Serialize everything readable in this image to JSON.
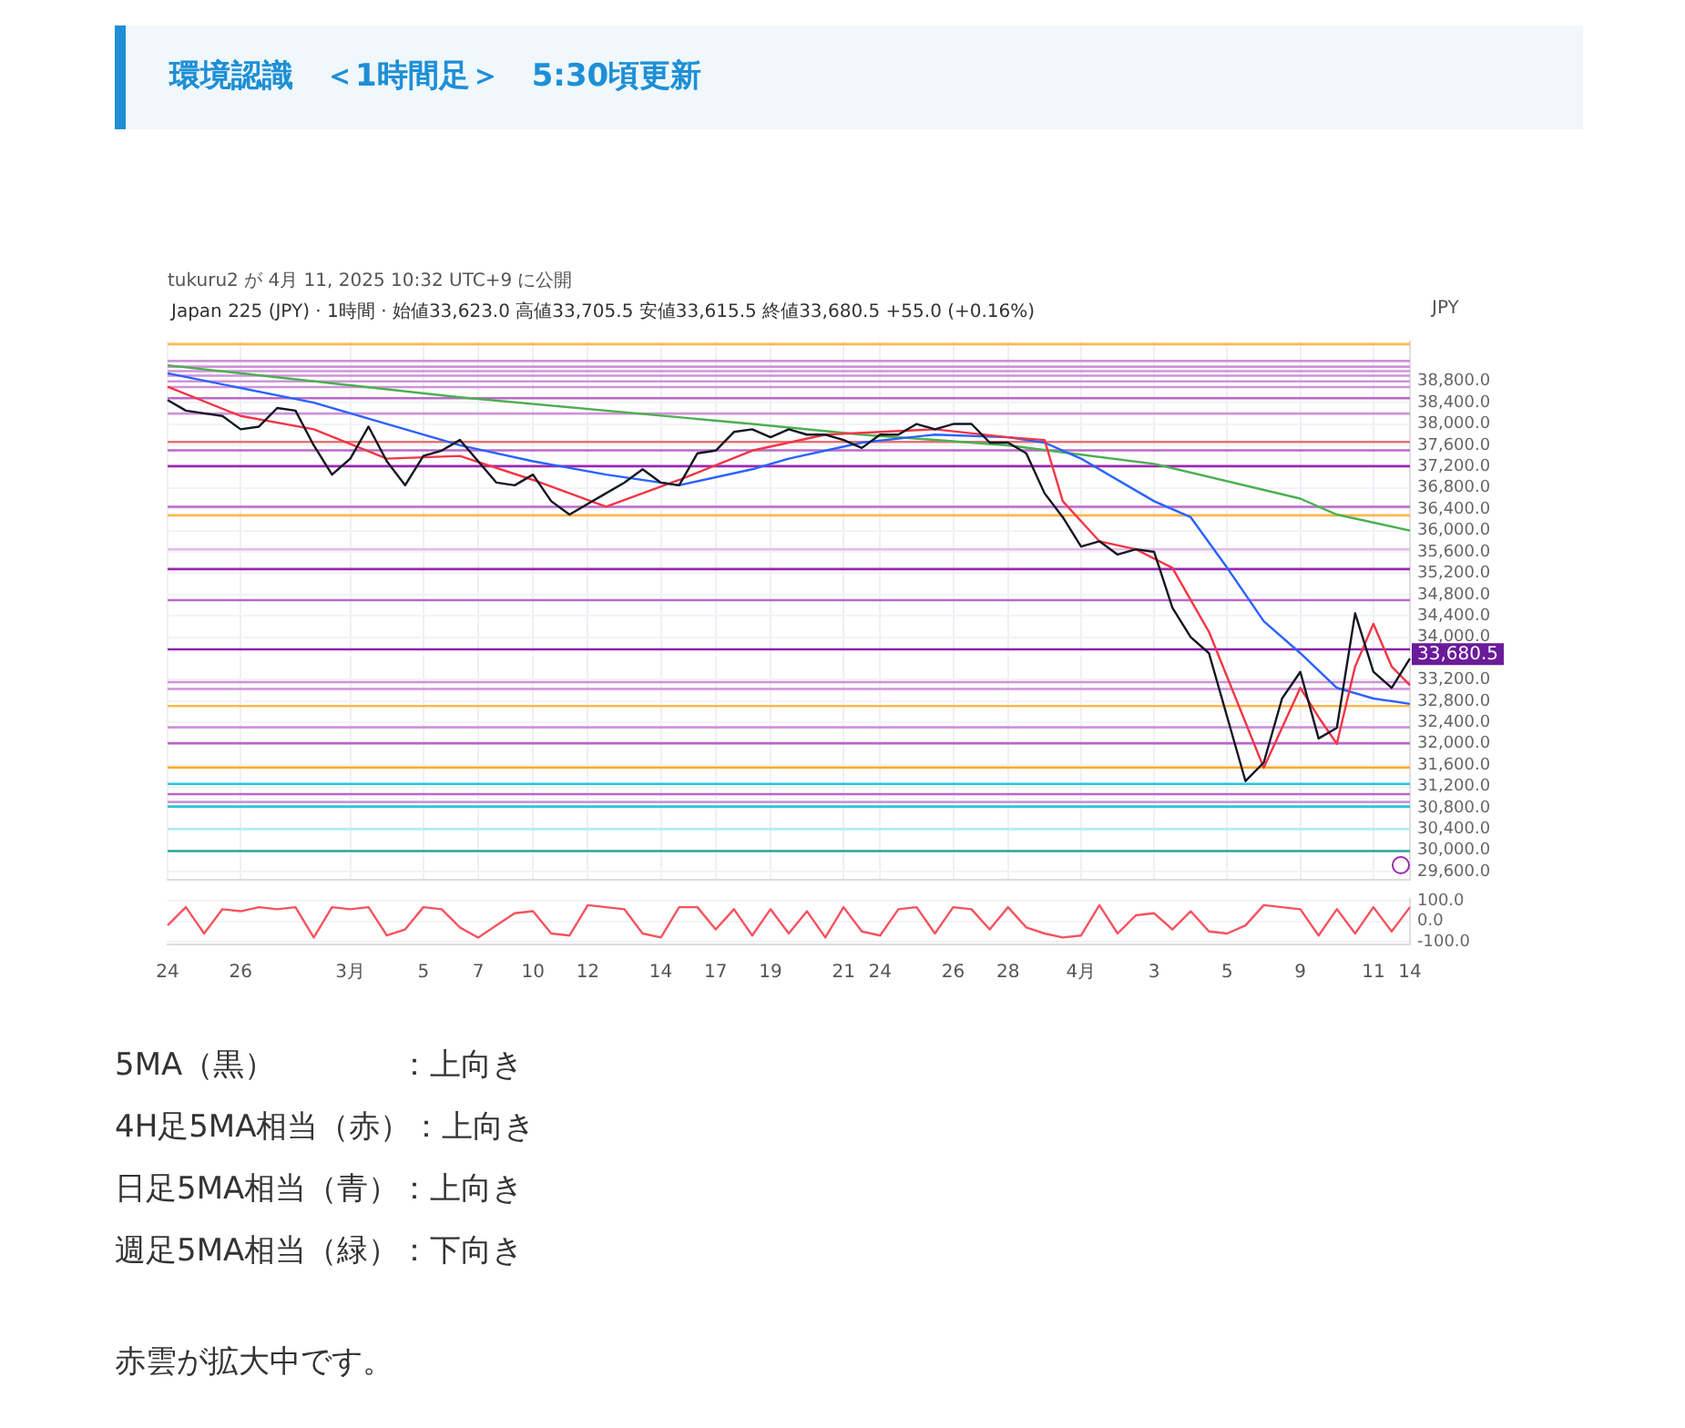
{
  "chart_data": [
    {
      "type": "line",
      "title": "環境認識　＜1時間足＞　5:30頃更新",
      "subtitle": "Japan 225 (JPY) · 1時間 · 始値33,623.0 高値33,705.5 安値33,615.5 終値33,680.5 +55.0 (+0.16%)",
      "ylabel": "JPY",
      "categories": [
        "24",
        null,
        null,
        null,
        "26",
        null,
        null,
        null,
        null,
        null,
        "3月",
        null,
        null,
        null,
        "5",
        null,
        null,
        "7",
        null,
        null,
        "10",
        null,
        null,
        "12",
        null,
        null,
        null,
        "14",
        null,
        null,
        "17",
        null,
        null,
        "19",
        null,
        null,
        null,
        "21",
        null,
        "24",
        null,
        null,
        null,
        "26",
        null,
        null,
        "28",
        null,
        null,
        null,
        "4月",
        null,
        null,
        null,
        "3",
        null,
        null,
        null,
        "5",
        null,
        null,
        null,
        "9",
        null,
        null,
        null,
        "11",
        null,
        "14"
      ],
      "series": [
        {
          "color": "#131722",
          "values": [
            38450,
            38250,
            38200,
            38150,
            37900,
            37950,
            38300,
            38250,
            37600,
            37050,
            37350,
            37950,
            37300,
            36850,
            37400,
            37500,
            37700,
            37300,
            36900,
            36850,
            37050,
            36550,
            36300,
            36500,
            36700,
            36900,
            37150,
            36900,
            36850,
            37450,
            37500,
            37850,
            37900,
            37750,
            37900,
            37800,
            37800,
            37700,
            37550,
            37800,
            37800,
            38000,
            37900,
            38000,
            38000,
            37650,
            37650,
            37450,
            36700,
            36250,
            35700,
            35800,
            35550,
            35650,
            35600,
            34550,
            34000,
            33700,
            32500,
            31300,
            31650,
            32850,
            33350,
            32100,
            32300,
            34450,
            33350,
            33050,
            33600
          ]
        },
        {
          "color": "#f23645",
          "values": [
            38700,
            null,
            null,
            null,
            38150,
            null,
            null,
            null,
            37900,
            null,
            null,
            null,
            37350,
            null,
            null,
            null,
            37400,
            null,
            null,
            null,
            36950,
            null,
            null,
            null,
            36450,
            null,
            null,
            null,
            36950,
            null,
            null,
            null,
            37500,
            null,
            null,
            null,
            37800,
            null,
            null,
            null,
            null,
            null,
            37900,
            null,
            null,
            null,
            37750,
            null,
            37700,
            36550,
            null,
            35800,
            null,
            35650,
            null,
            35300,
            null,
            34100,
            null,
            32400,
            31550,
            null,
            33050,
            32500,
            32000,
            33450,
            34250,
            33450,
            33100
          ]
        },
        {
          "color": "#2962ff",
          "values": [
            38950,
            null,
            null,
            null,
            null,
            null,
            null,
            null,
            38400,
            null,
            null,
            null,
            null,
            null,
            null,
            null,
            37600,
            null,
            null,
            null,
            37300,
            null,
            null,
            null,
            37050,
            null,
            null,
            null,
            36850,
            null,
            null,
            null,
            37150,
            null,
            37350,
            null,
            null,
            null,
            37650,
            null,
            null,
            null,
            37800,
            null,
            null,
            null,
            37750,
            null,
            37650,
            null,
            37350,
            null,
            null,
            null,
            36550,
            null,
            36250,
            null,
            35300,
            null,
            34300,
            null,
            33700,
            null,
            33050,
            null,
            32850,
            null,
            32750
          ]
        },
        {
          "color": "#4caf50",
          "values": [
            39100,
            null,
            null,
            null,
            null,
            null,
            null,
            null,
            null,
            null,
            null,
            null,
            null,
            null,
            null,
            null,
            38500,
            null,
            null,
            null,
            null,
            null,
            null,
            null,
            null,
            null,
            null,
            null,
            null,
            null,
            null,
            null,
            38000,
            null,
            null,
            null,
            null,
            null,
            37800,
            null,
            null,
            null,
            null,
            null,
            null,
            null,
            37600,
            null,
            null,
            null,
            null,
            null,
            null,
            null,
            37250,
            null,
            null,
            null,
            null,
            null,
            null,
            null,
            36600,
            null,
            36300,
            null,
            null,
            null,
            36000
          ]
        }
      ],
      "ylim": [
        29450,
        39550
      ],
      "yticks": [
        {
          "value": 29600,
          "label": "29,600.0"
        },
        {
          "value": 30000,
          "label": "30,000.0"
        },
        {
          "value": 30400,
          "label": "30,400.0"
        },
        {
          "value": 30800,
          "label": "30,800.0"
        },
        {
          "value": 31200,
          "label": "31,200.0"
        },
        {
          "value": 31600,
          "label": "31,600.0"
        },
        {
          "value": 32000,
          "label": "32,000.0"
        },
        {
          "value": 32400,
          "label": "32,400.0"
        },
        {
          "value": 32800,
          "label": "32,800.0"
        },
        {
          "value": 33200,
          "label": "33,200.0"
        },
        {
          "value": 34000,
          "label": "34,000.0"
        },
        {
          "value": 34400,
          "label": "34,400.0"
        },
        {
          "value": 34800,
          "label": "34,800.0"
        },
        {
          "value": 35200,
          "label": "35,200.0"
        },
        {
          "value": 35600,
          "label": "35,600.0"
        },
        {
          "value": 36000,
          "label": "36,000.0"
        },
        {
          "value": 36400,
          "label": "36,400.0"
        },
        {
          "value": 36800,
          "label": "36,800.0"
        },
        {
          "value": 37200,
          "label": "37,200.0"
        },
        {
          "value": 37600,
          "label": "37,600.0"
        },
        {
          "value": 38000,
          "label": "38,000.0"
        },
        {
          "value": 38400,
          "label": "38,400.0"
        },
        {
          "value": 38800,
          "label": "38,800.0"
        }
      ],
      "ref_lines": [
        {
          "axis": "y",
          "value": 39497,
          "color": "#ffb74d"
        },
        {
          "axis": "y",
          "value": 39182,
          "color": "#ce93d8"
        },
        {
          "axis": "y",
          "value": 39074,
          "color": "#ce93d8"
        },
        {
          "axis": "y",
          "value": 38991,
          "color": "#ce93d8"
        },
        {
          "axis": "y",
          "value": 38905,
          "color": "#ce93d8"
        },
        {
          "axis": "y",
          "value": 38800,
          "color": "#ce93d8"
        },
        {
          "axis": "y",
          "value": 38692,
          "color": "#ce93d8"
        },
        {
          "axis": "y",
          "value": 38482,
          "color": "#ba68c8"
        },
        {
          "axis": "y",
          "value": 38195,
          "color": "#ce93d8"
        },
        {
          "axis": "y",
          "value": 37664,
          "color": "#e57373"
        },
        {
          "axis": "y",
          "value": 37505,
          "color": "#ba68c8"
        },
        {
          "axis": "y",
          "value": 37209,
          "color": "#9c27b0"
        },
        {
          "axis": "y",
          "value": 36446,
          "color": "#ba68c8"
        },
        {
          "axis": "y",
          "value": 36286,
          "color": "#ffb74d"
        },
        {
          "axis": "y",
          "value": 35650,
          "color": "#e1bee7"
        },
        {
          "axis": "y",
          "value": 35278,
          "color": "#9c27b0"
        },
        {
          "axis": "y",
          "value": 34696,
          "color": "#ba68c8"
        },
        {
          "axis": "y",
          "value": 33773,
          "color": "#8e24aa"
        },
        {
          "axis": "y",
          "value": 33680.5,
          "color": "#ffffff",
          "line_style": "dotted",
          "label": "33,680.5"
        },
        {
          "axis": "y",
          "value": 33156,
          "color": "#ce93d8"
        },
        {
          "axis": "y",
          "value": 33029,
          "color": "#ce93d8"
        },
        {
          "axis": "y",
          "value": 32710,
          "color": "#ffb74d"
        },
        {
          "axis": "y",
          "value": 32309,
          "color": "#ce93d8"
        },
        {
          "axis": "y",
          "value": 32010,
          "color": "#ba68c8"
        },
        {
          "axis": "y",
          "value": 31555,
          "color": "#ffa726"
        },
        {
          "axis": "y",
          "value": 31247,
          "color": "#26c6da"
        },
        {
          "axis": "y",
          "value": 31056,
          "color": "#ba68c8"
        },
        {
          "axis": "y",
          "value": 30909,
          "color": "#ce93d8"
        },
        {
          "axis": "y",
          "value": 30823,
          "color": "#26c6da"
        },
        {
          "axis": "y",
          "value": 30400,
          "color": "#b2ebf2"
        },
        {
          "axis": "y",
          "value": 29987,
          "color": "#26a69a"
        }
      ],
      "annotations": [
        "tukuru2 が 4月 11, 2025 10:32 UTC+9 に公開",
        "5MA（黒）　　　　：上向き",
        "4H足5MA相当（赤）：上向き",
        "日足5MA相当（青）：上向き",
        "週足5MA相当（緑）：下向き",
        "赤雲が拡大中です。"
      ],
      "grid": true,
      "marker": "none"
    },
    {
      "type": "line",
      "tick_labels": "y",
      "categories": [
        null,
        null,
        null,
        null,
        null,
        null,
        null,
        null,
        null,
        null,
        null,
        null,
        null,
        null,
        null,
        null,
        null,
        null,
        null,
        null,
        null,
        null,
        null,
        null,
        null,
        null,
        null,
        null,
        null,
        null,
        null,
        null,
        null,
        null,
        null,
        null,
        null,
        null,
        null,
        null,
        null,
        null,
        null,
        null,
        null,
        null,
        null,
        null,
        null,
        null,
        null,
        null,
        null,
        null,
        null,
        null,
        null,
        null,
        null,
        null,
        null,
        null,
        null,
        null,
        null,
        null,
        null,
        null,
        null
      ],
      "series": [
        {
          "color": "#f7525f",
          "values": [
            -20,
            70,
            -60,
            60,
            50,
            70,
            60,
            70,
            -80,
            70,
            60,
            70,
            -70,
            -40,
            70,
            60,
            -30,
            -80,
            -20,
            40,
            50,
            -60,
            -70,
            80,
            70,
            60,
            -60,
            -80,
            70,
            70,
            -40,
            60,
            -70,
            60,
            -60,
            50,
            -80,
            70,
            -50,
            -70,
            60,
            70,
            -60,
            70,
            60,
            -40,
            70,
            -30,
            -60,
            -80,
            -70,
            80,
            -60,
            30,
            40,
            -40,
            50,
            -50,
            -60,
            -20,
            80,
            70,
            60,
            -70,
            60,
            -60,
            70,
            -50,
            70
          ]
        }
      ],
      "ylim": [
        -115,
        112
      ],
      "yticks": [
        {
          "value": 100,
          "label": "100.0"
        },
        {
          "value": 0,
          "label": "0.0"
        },
        {
          "value": -100,
          "label": "-100.0"
        }
      ],
      "grid": true,
      "marker": "none"
    }
  ]
}
